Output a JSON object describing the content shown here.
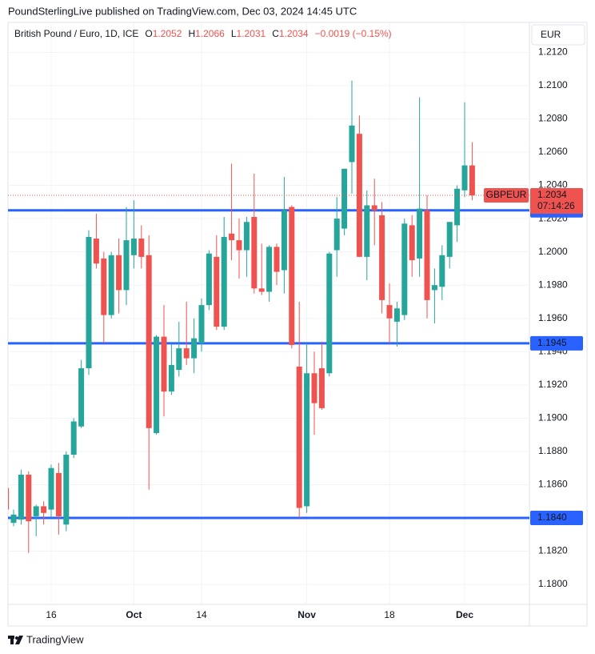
{
  "publisher": "PoundSterlingLive published on TradingView.com, Dec 03, 2024 14:45 UTC",
  "brand": "TradingView",
  "chart_data": {
    "type": "candlestick",
    "title": "British Pound / Euro, 1D, ICE",
    "legend_keys": [
      "O",
      "H",
      "L",
      "C"
    ],
    "change": "−0.0019 (−0.15%)",
    "currency": "EUR",
    "symbol": "GBPEUR",
    "countdown": "07:14:26",
    "up_color": "#26a69a",
    "down_color": "#ef5350",
    "categories": [
      null,
      null,
      null,
      null,
      null,
      null,
      "16",
      null,
      null,
      null,
      null,
      null,
      null,
      null,
      null,
      null,
      null,
      "Oct",
      null,
      null,
      null,
      null,
      null,
      null,
      null,
      null,
      "14",
      null,
      null,
      null,
      null,
      null,
      null,
      null,
      null,
      null,
      null,
      null,
      null,
      null,
      "Nov",
      null,
      null,
      null,
      null,
      null,
      null,
      null,
      null,
      null,
      null,
      "18",
      null,
      null,
      null,
      null,
      null,
      null,
      null,
      null,
      null,
      "Dec",
      null
    ],
    "series": [
      {
        "name": "GBPEUR",
        "open": [
          1.1858,
          1.1837,
          1.1839,
          1.1866,
          1.1841,
          1.1847,
          1.1845,
          1.1867,
          1.1836,
          1.1878,
          1.1895,
          1.193,
          1.2008,
          1.1996,
          1.1962,
          1.1998,
          1.1977,
          1.1998,
          1.2008,
          1.1998,
          1.1891,
          1.1949,
          1.1916,
          1.1929,
          1.1942,
          1.1936,
          1.1945,
          1.1968,
          1.1997,
          1.1955,
          1.2011,
          1.2007,
          1.2001,
          1.2021,
          1.1978,
          1.1976,
          1.2003,
          1.1989,
          1.2027,
          1.1931,
          1.1847,
          1.1927,
          1.193,
          1.1927,
          1.2001,
          1.2014,
          1.2054,
          1.2071,
          1.1997,
          1.2028,
          1.2022,
          1.1968,
          1.1958,
          1.1962,
          1.2016,
          1.1996,
          1.2025,
          1.1977,
          1.1979,
          1.1997,
          1.2016,
          1.2037,
          1.2052
        ],
        "high": [
          1.1862,
          1.1845,
          1.1869,
          1.1868,
          1.1848,
          1.185,
          1.1872,
          1.1873,
          1.188,
          1.19,
          1.1935,
          1.2013,
          1.2023,
          1.2,
          1.2,
          1.2008,
          1.2027,
          1.2031,
          1.2016,
          1.201,
          1.195,
          1.1968,
          1.1945,
          1.1958,
          1.197,
          1.196,
          1.1972,
          1.2001,
          1.201,
          1.2021,
          1.2053,
          1.202,
          1.2021,
          1.2047,
          1.2005,
          1.2004,
          1.2005,
          1.2045,
          1.2028,
          1.197,
          1.1945,
          1.194,
          1.1946,
          1.2,
          1.2033,
          1.205,
          1.2103,
          1.2082,
          1.2037,
          1.2044,
          1.203,
          1.1981,
          1.197,
          1.202,
          1.2022,
          1.2093,
          1.2034,
          1.199,
          1.2004,
          1.2018,
          1.204,
          1.209,
          1.2066
        ],
        "low": [
          1.1838,
          1.1835,
          1.1836,
          1.1819,
          1.1829,
          1.1836,
          1.184,
          1.183,
          1.1832,
          1.1876,
          1.1894,
          1.1926,
          1.199,
          1.1945,
          1.196,
          1.1963,
          1.1968,
          1.199,
          1.199,
          1.1857,
          1.189,
          1.1901,
          1.1914,
          1.1925,
          1.1932,
          1.1927,
          1.194,
          1.1965,
          1.1953,
          1.1953,
          1.1995,
          1.1984,
          1.1985,
          1.1975,
          1.1974,
          1.197,
          1.198,
          1.1975,
          1.1942,
          1.184,
          1.1843,
          1.189,
          1.1905,
          1.1925,
          1.1985,
          1.201,
          1.2035,
          1.1997,
          1.1983,
          1.2004,
          1.1963,
          1.1945,
          1.1943,
          1.1959,
          1.1985,
          1.1985,
          1.196,
          1.1957,
          1.1971,
          1.199,
          1.2006,
          1.2033,
          1.2031
        ],
        "close": [
          1.1845,
          1.1842,
          1.1866,
          1.1838,
          1.1847,
          1.1843,
          1.187,
          1.1841,
          1.1878,
          1.1898,
          1.193,
          1.2009,
          1.1993,
          1.1962,
          1.1998,
          1.1977,
          1.2007,
          1.2008,
          1.1997,
          1.1894,
          1.1949,
          1.1916,
          1.1932,
          1.1942,
          1.1936,
          1.1948,
          1.1968,
          1.1999,
          1.1955,
          1.2009,
          1.2007,
          1.2001,
          1.2018,
          1.1978,
          1.1976,
          1.2003,
          1.1988,
          1.2025,
          1.1944,
          1.1846,
          1.1927,
          1.1909,
          1.1906,
          1.1999,
          1.202,
          1.205,
          1.2076,
          1.1997,
          1.2028,
          1.2025,
          1.1971,
          1.196,
          1.1966,
          1.2017,
          1.1995,
          1.2026,
          1.1971,
          1.198,
          1.1998,
          1.2018,
          1.2038,
          1.2052,
          1.2034
        ]
      }
    ],
    "hlines": [
      1.2025,
      1.1945,
      {
        "value": 1.184,
        "label": "1.1840"
      }
    ],
    "hline_color": "#2962ff",
    "ylim": [
      1.1788,
      1.2138
    ],
    "yticks": [
      {
        "value": 1.18,
        "label": "1.1800"
      },
      {
        "value": 1.182,
        "label": "1.1820"
      },
      {
        "value": 1.184,
        "label": "1.1840"
      },
      {
        "value": 1.186,
        "label": "1.1860"
      },
      {
        "value": 1.188,
        "label": "1.1880"
      },
      {
        "value": 1.19,
        "label": "1.1900"
      },
      {
        "value": 1.192,
        "label": "1.1920"
      },
      {
        "value": 1.194,
        "label": "1.1940"
      },
      {
        "value": 1.196,
        "label": "1.1960"
      },
      {
        "value": 1.198,
        "label": "1.1980"
      },
      {
        "value": 1.2,
        "label": "1.2000"
      },
      {
        "value": 1.202,
        "label": "1.2020"
      },
      {
        "value": 1.204,
        "label": "1.2040"
      },
      {
        "value": 1.206,
        "label": "1.2060"
      },
      {
        "value": 1.208,
        "label": "1.2080"
      },
      {
        "value": 1.21,
        "label": "1.2100"
      },
      {
        "value": 1.212,
        "label": "1.2120"
      }
    ],
    "grid": true
  }
}
